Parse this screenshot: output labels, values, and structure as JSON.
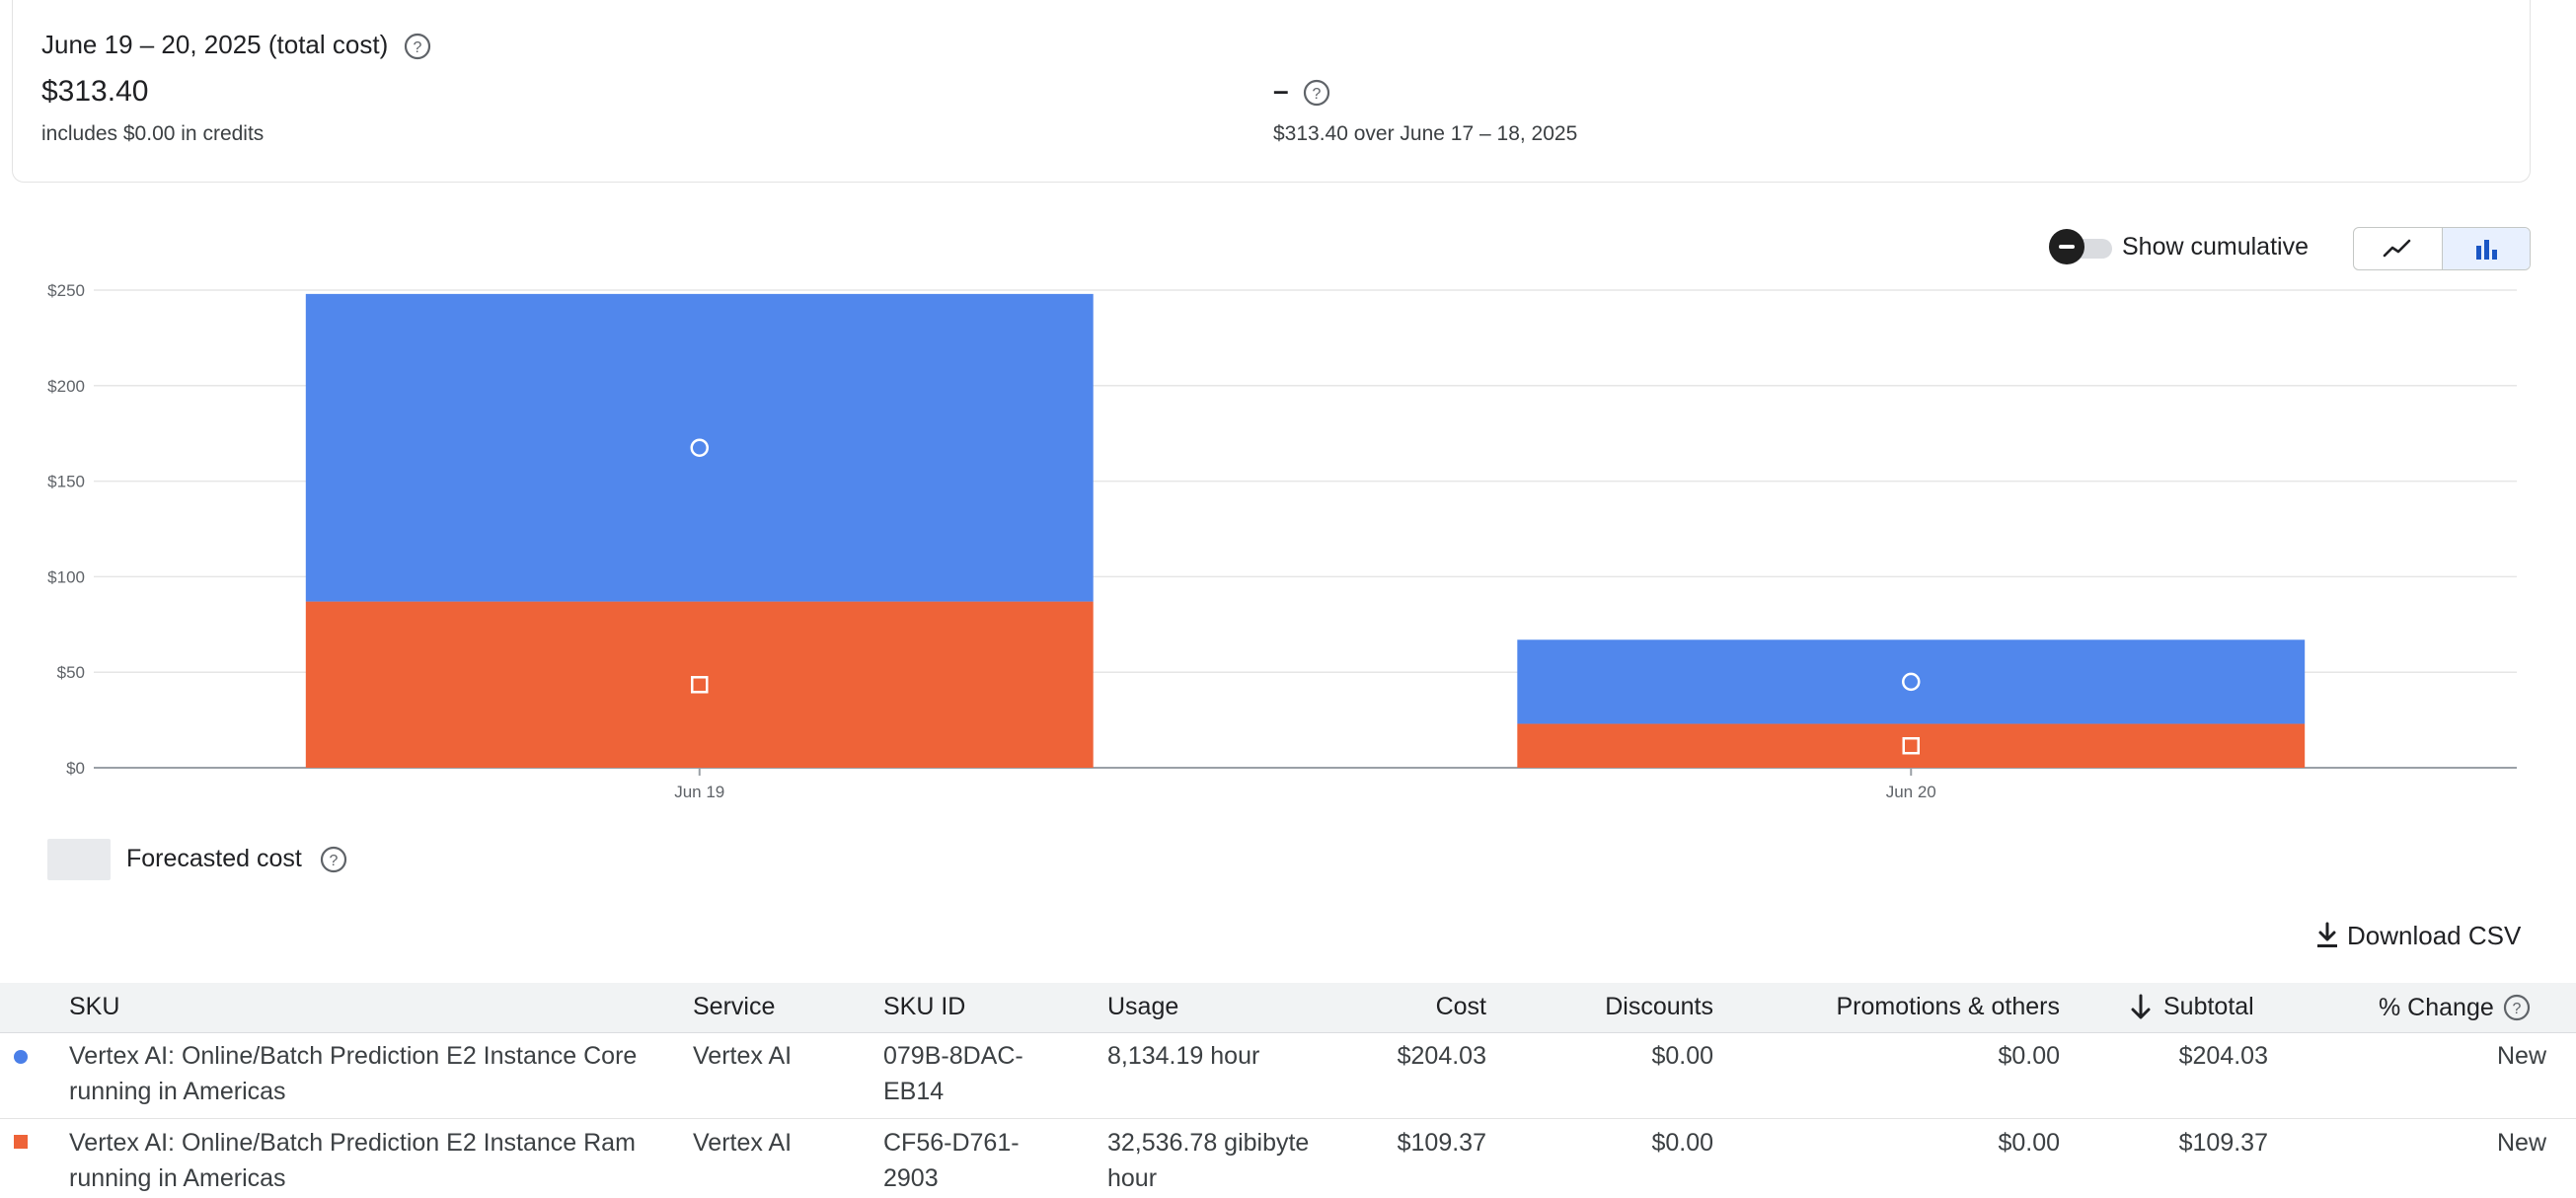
{
  "summary": {
    "period_label": "June 19 – 20, 2025 (total cost)",
    "total_cost": "$313.40",
    "credits_note": "includes $0.00 in credits",
    "change_value": "–",
    "comparison_note": "$313.40 over June 17 – 18, 2025"
  },
  "controls": {
    "show_cumulative_label": "Show cumulative",
    "cumulative_enabled": false,
    "view_modes": [
      "line-chart-icon",
      "bar-chart-icon"
    ],
    "active_view": "bar"
  },
  "chart_data": {
    "type": "bar",
    "stacked": true,
    "categories": [
      "Jun 19",
      "Jun 20"
    ],
    "series": [
      {
        "marker": "square",
        "color": "#ee6338",
        "values": [
          87,
          23
        ]
      },
      {
        "marker": "circle",
        "color": "#5187ec",
        "values": [
          161,
          44
        ]
      }
    ],
    "ylim": [
      0,
      250
    ],
    "yticks": [
      "$0",
      "$50",
      "$100",
      "$150",
      "$200",
      "$250"
    ],
    "ytick_values": [
      0,
      50,
      100,
      150,
      200,
      250
    ],
    "grid": true
  },
  "legend": {
    "forecast_label": "Forecasted cost"
  },
  "table": {
    "download_label": "Download CSV",
    "headers": {
      "sku": "SKU",
      "service": "Service",
      "sku_id": "SKU ID",
      "usage": "Usage",
      "cost": "Cost",
      "discounts": "Discounts",
      "promotions": "Promotions & others",
      "subtotal": "Subtotal",
      "change": "% Change"
    },
    "rows": [
      {
        "marker_color": "#4a7fe8",
        "sku_line1": "Vertex AI: Online/Batch Prediction E2 Instance Core",
        "sku_line2": "running in Americas",
        "service": "Vertex AI",
        "sku_id_line1": "079B-8DAC-",
        "sku_id_line2": "EB14",
        "usage_line1": "8,134.19 hour",
        "usage_line2": "",
        "cost": "$204.03",
        "discounts": "$0.00",
        "promotions": "$0.00",
        "subtotal": "$204.03",
        "change": "New"
      },
      {
        "marker_color": "#ee6338",
        "sku_line1": "Vertex AI: Online/Batch Prediction E2 Instance Ram",
        "sku_line2": "running in Americas",
        "service": "Vertex AI",
        "sku_id_line1": "CF56-D761-",
        "sku_id_line2": "2903",
        "usage_line1": "32,536.78 gibibyte",
        "usage_line2": "hour",
        "cost": "$109.37",
        "discounts": "$0.00",
        "promotions": "$0.00",
        "subtotal": "$109.37",
        "change": "New"
      }
    ]
  }
}
